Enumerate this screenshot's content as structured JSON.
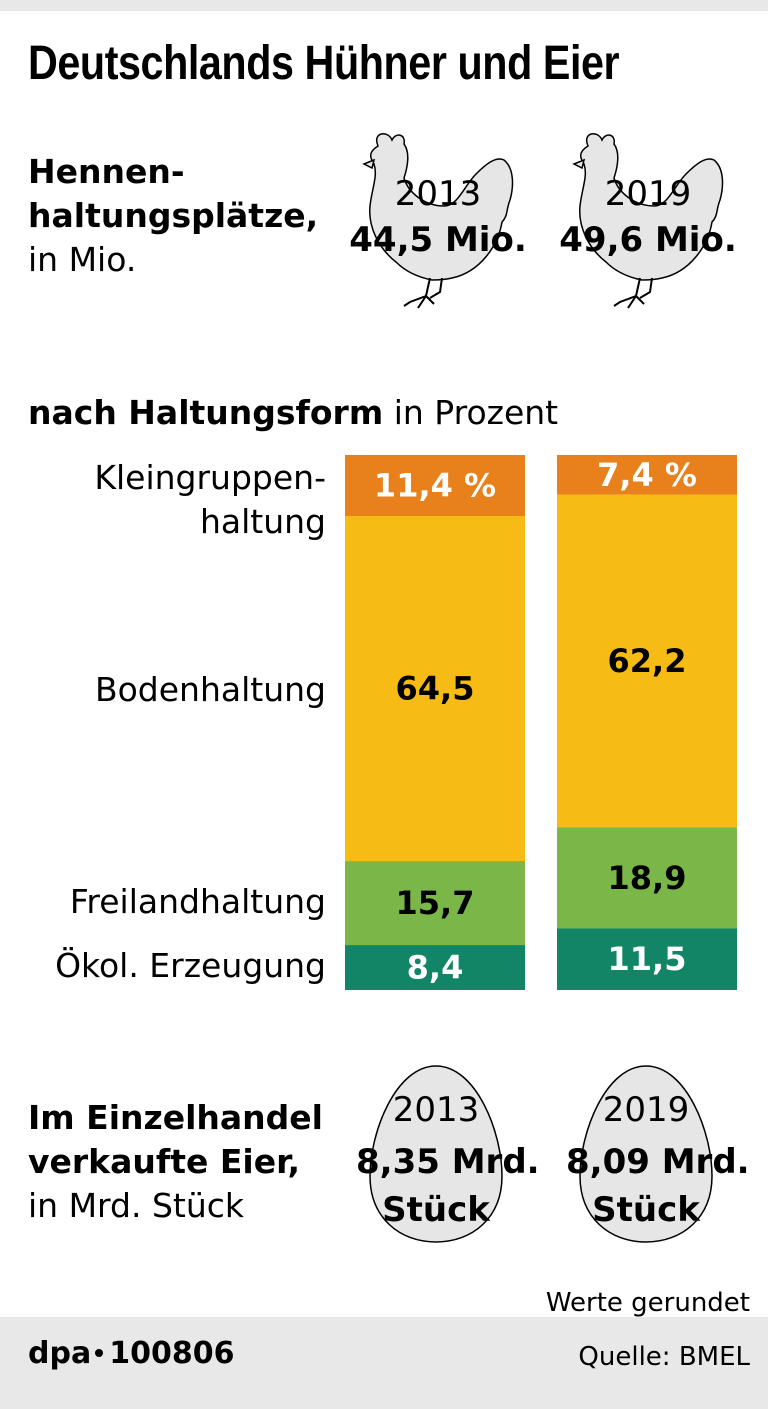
{
  "title": "Deutschlands Hühner und Eier",
  "hens": {
    "label_bold_1": "Hennen-",
    "label_bold_2": "haltungsplätze,",
    "label_normal": "in Mio.",
    "items": [
      {
        "year": "2013",
        "value": "44,5 Mio."
      },
      {
        "year": "2019",
        "value": "49,6 Mio."
      }
    ]
  },
  "subtitle": {
    "bold": "nach Haltungsform",
    "normal": " in Prozent"
  },
  "categories_labels": {
    "klein_1": "Kleingruppen-",
    "klein_2": "haltung",
    "boden": "Bodenhaltung",
    "frei": "Freilandhaltung",
    "oeko": "Ökol. Erzeugung"
  },
  "chart_data": {
    "type": "bar",
    "stacked": true,
    "categories": [
      "2013",
      "2019"
    ],
    "ylim": [
      0,
      100
    ],
    "series": [
      {
        "name": "Kleingruppenhaltung",
        "values": [
          11.4,
          7.4
        ],
        "labels": [
          "11,4 %",
          "7,4 %"
        ],
        "color": "#e8801c",
        "label_color": "#ffffff"
      },
      {
        "name": "Bodenhaltung",
        "values": [
          64.5,
          62.2
        ],
        "labels": [
          "64,5",
          "62,2"
        ],
        "color": "#f7bb16",
        "label_color": "#000000"
      },
      {
        "name": "Freilandhaltung",
        "values": [
          15.7,
          18.9
        ],
        "labels": [
          "15,7",
          "18,9"
        ],
        "color": "#7ab648",
        "label_color": "#000000"
      },
      {
        "name": "Ökol. Erzeugung",
        "values": [
          8.4,
          11.5
        ],
        "labels": [
          "8,4",
          "11,5"
        ],
        "color": "#128566",
        "label_color": "#ffffff"
      }
    ]
  },
  "eggs": {
    "label_bold_1": "Im Einzelhandel",
    "label_bold_2": "verkaufte Eier,",
    "label_normal": "in Mrd. Stück",
    "items": [
      {
        "year": "2013",
        "value_1": "8,35 Mrd.",
        "value_2": "Stück"
      },
      {
        "year": "2019",
        "value_1": "8,09 Mrd.",
        "value_2": "Stück"
      }
    ]
  },
  "note": "Werte gerundet",
  "credit": {
    "prefix": "dpa",
    "id": "100806"
  },
  "source": "Quelle: BMEL",
  "colors": {
    "silhouette": "#e6e6e6",
    "outline": "#000000",
    "footer_bg": "#e8e8e8"
  }
}
